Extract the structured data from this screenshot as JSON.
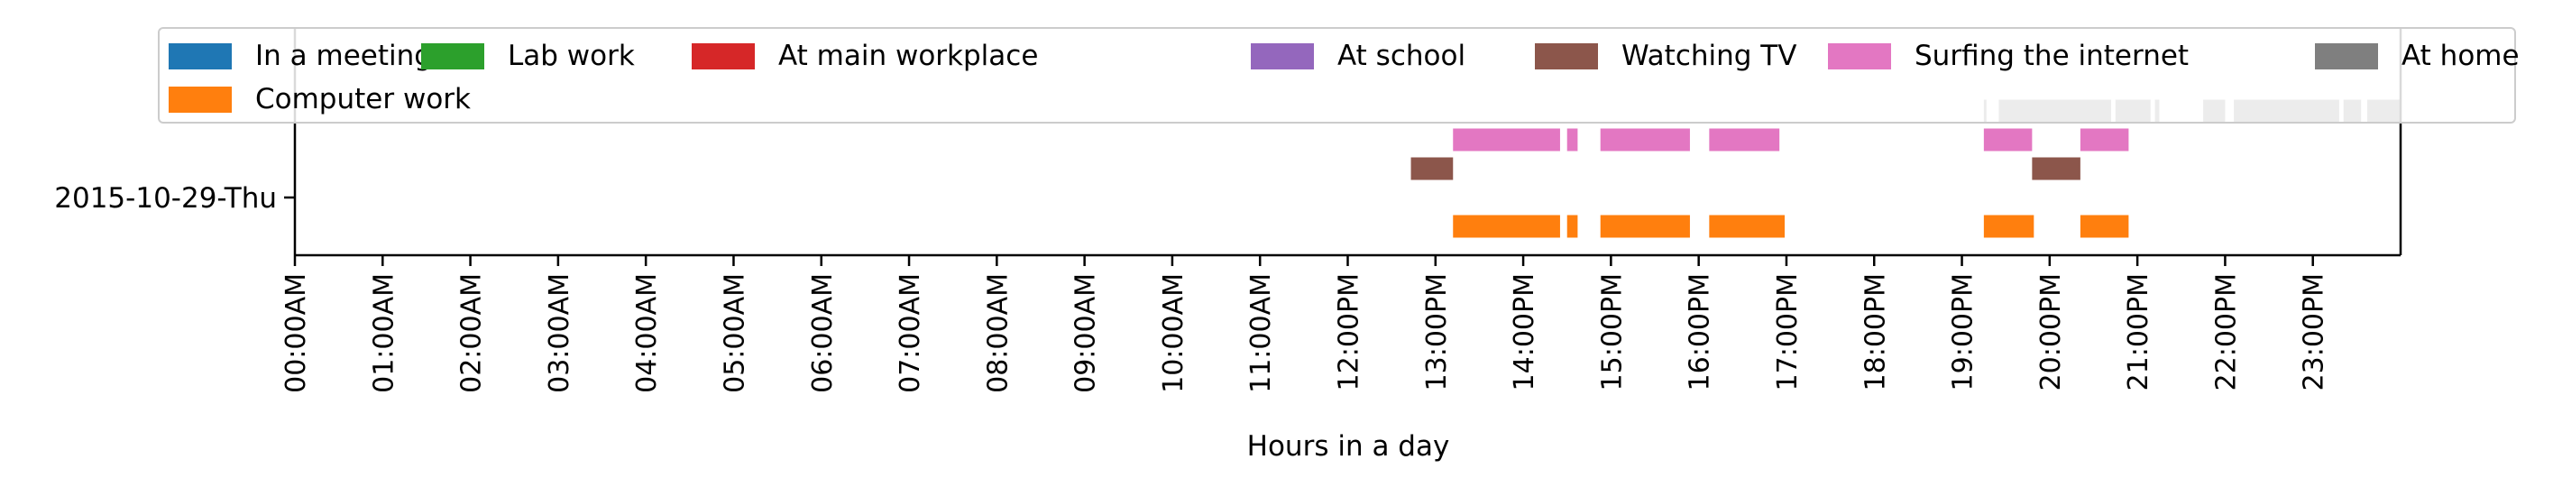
{
  "chart_data": {
    "type": "timeline",
    "xlabel": "Hours in a day",
    "ylabel": "",
    "xlim": [
      0,
      24
    ],
    "x_ticks": [
      "00:00AM",
      "01:00AM",
      "02:00AM",
      "03:00AM",
      "04:00AM",
      "05:00AM",
      "06:00AM",
      "07:00AM",
      "08:00AM",
      "09:00AM",
      "10:00AM",
      "11:00AM",
      "12:00PM",
      "13:00PM",
      "14:00PM",
      "15:00PM",
      "16:00PM",
      "17:00PM",
      "18:00PM",
      "19:00PM",
      "20:00PM",
      "21:00PM",
      "22:00PM",
      "23:00PM"
    ],
    "categories": [
      "2015-10-29-Thu"
    ],
    "legend_position": "top",
    "series": [
      {
        "name": "In a meeting",
        "color": "#1f77b4",
        "lane": 6,
        "intervals": []
      },
      {
        "name": "Lab work",
        "color": "#2ca02c",
        "lane": 5,
        "intervals": []
      },
      {
        "name": "At main workplace",
        "color": "#d62728",
        "lane": 4,
        "intervals": []
      },
      {
        "name": "At school",
        "color": "#9467bd",
        "lane": 3,
        "intervals": []
      },
      {
        "name": "Watching TV",
        "color": "#8c564b",
        "lane": 1,
        "intervals": [
          [
            12.72,
            13.2
          ],
          [
            19.8,
            20.35
          ]
        ]
      },
      {
        "name": "Surfing the internet",
        "color": "#e377c2",
        "lane": 2,
        "intervals": [
          [
            13.2,
            14.42
          ],
          [
            14.5,
            14.62
          ],
          [
            14.88,
            15.9
          ],
          [
            16.12,
            16.92
          ],
          [
            19.25,
            19.8
          ],
          [
            20.35,
            20.9
          ]
        ]
      },
      {
        "name": "At home",
        "color": "#7f7f7f",
        "lane": 3,
        "intervals": [
          [
            19.25,
            19.28
          ],
          [
            19.42,
            20.7
          ],
          [
            20.75,
            21.15
          ],
          [
            21.2,
            21.25
          ],
          [
            21.75,
            22.0
          ],
          [
            22.1,
            23.3
          ],
          [
            23.35,
            23.55
          ],
          [
            23.62,
            24.0
          ]
        ]
      },
      {
        "name": "Computer work",
        "color": "#ff7f0e",
        "lane": -1,
        "intervals": [
          [
            13.2,
            14.42
          ],
          [
            14.5,
            14.62
          ],
          [
            14.88,
            15.9
          ],
          [
            16.12,
            16.98
          ],
          [
            19.25,
            19.82
          ],
          [
            20.35,
            20.9
          ]
        ]
      }
    ]
  }
}
